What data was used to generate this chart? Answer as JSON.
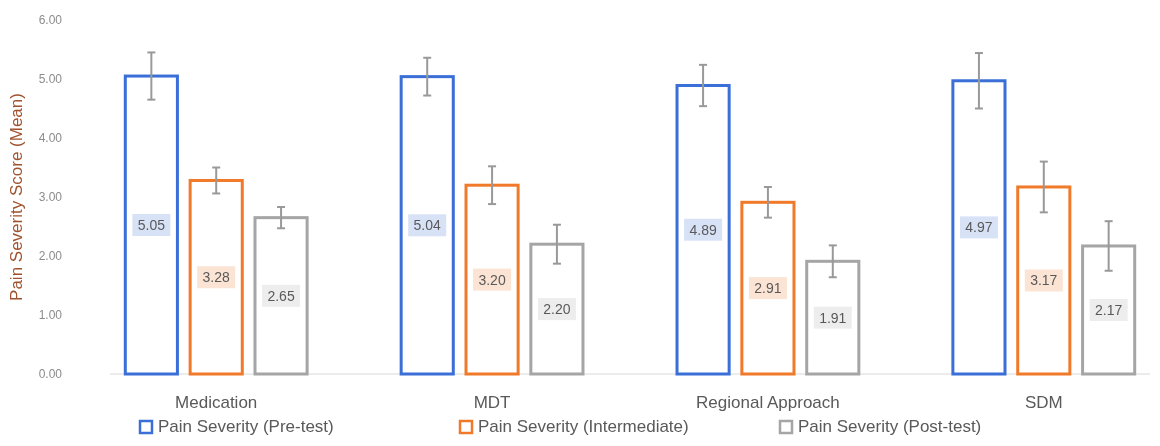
{
  "chart_data": {
    "type": "bar",
    "ylabel": "Pain Severity Score (Mean)",
    "categories": [
      "Medication",
      "MDT",
      "Regional Approach",
      "SDM"
    ],
    "series": [
      {
        "name": "Pain Severity (Pre-test)",
        "color": "#3a6fd8",
        "values": [
          5.05,
          5.04,
          4.89,
          4.97
        ],
        "errors": [
          0.4,
          0.32,
          0.35,
          0.47
        ],
        "value_labels": [
          "5.05",
          "5.04",
          "4.89",
          "4.97"
        ]
      },
      {
        "name": "Pain Severity (Intermediate)",
        "color": "#f07a2a",
        "values": [
          3.28,
          3.2,
          2.91,
          3.17
        ],
        "errors": [
          0.22,
          0.32,
          0.26,
          0.43
        ],
        "value_labels": [
          "3.28",
          "3.20",
          "2.91",
          "3.17"
        ]
      },
      {
        "name": "Pain Severity (Post-test)",
        "color": "#a5a5a5",
        "values": [
          2.65,
          2.2,
          1.91,
          2.17
        ],
        "errors": [
          0.18,
          0.33,
          0.27,
          0.42
        ],
        "value_labels": [
          "2.65",
          "2.20",
          "1.91",
          "2.17"
        ]
      }
    ],
    "ylim": [
      0,
      6
    ],
    "yticks": [
      {
        "value": 0,
        "label": "0.00"
      },
      {
        "value": 1,
        "label": "1.00"
      },
      {
        "value": 2,
        "label": "2.00"
      },
      {
        "value": 3,
        "label": "3.00"
      },
      {
        "value": 4,
        "label": "4.00"
      },
      {
        "value": 5,
        "label": "5.00"
      },
      {
        "value": 6,
        "label": "6.00"
      }
    ],
    "legend": "bottom"
  }
}
